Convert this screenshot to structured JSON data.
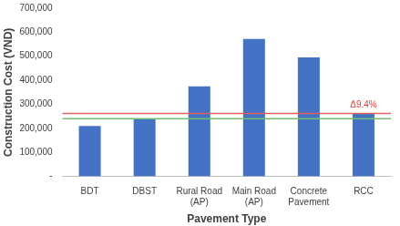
{
  "chart_data": {
    "type": "bar",
    "x_label": "Pavement Type",
    "y_label": "Construction Cost (VND)",
    "categories": [
      "BDT",
      "DBST",
      "Rural Road (AP)",
      "Main Road (AP)",
      "Concrete Pavement",
      "RCC"
    ],
    "values": [
      210000,
      240000,
      375000,
      572000,
      495000,
      262500
    ],
    "color": "#4472c4",
    "ylim": [
      0,
      700000
    ],
    "yticks": [
      {
        "value": 0,
        "label": "-"
      },
      {
        "value": 100000,
        "label": "100,000"
      },
      {
        "value": 200000,
        "label": "200,000"
      },
      {
        "value": 300000,
        "label": "300,000"
      },
      {
        "value": 400000,
        "label": "400,000"
      },
      {
        "value": 500000,
        "label": "500,000"
      },
      {
        "value": 600000,
        "label": "600,000"
      },
      {
        "value": 700000,
        "label": "700,000"
      }
    ],
    "grid": false,
    "reference_lines": [
      {
        "value": 262500,
        "color": "#e06060"
      },
      {
        "value": 240000,
        "color": "#70c070"
      }
    ],
    "annotations": [
      {
        "text": "Δ9.4%",
        "category": "RCC",
        "color": "#e03c3c"
      }
    ]
  }
}
